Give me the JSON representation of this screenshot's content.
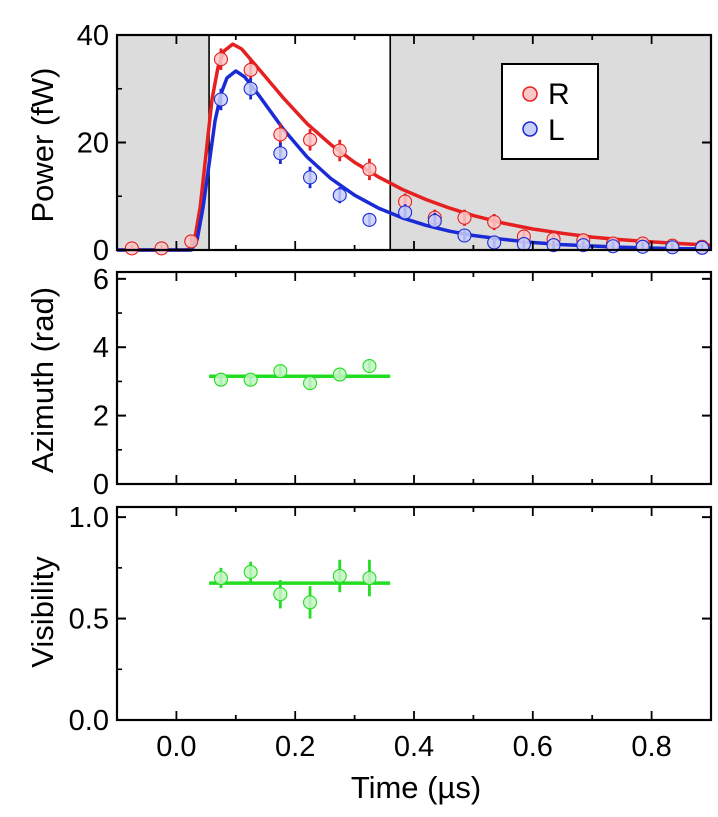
{
  "chart_data": [
    {
      "id": "power",
      "type": "scatter",
      "ylabel": "Power (fW)",
      "xlim": [
        -0.1,
        0.9
      ],
      "ylim": [
        0,
        40
      ],
      "yticks": [
        0,
        20,
        40
      ],
      "shaded_x_ranges": [
        [
          -0.1,
          0.055
        ],
        [
          0.36,
          0.9
        ]
      ],
      "boundary_lines_x": [
        0.055,
        0.36
      ],
      "legend": {
        "placement": "top-right",
        "entries": [
          "R",
          "L"
        ]
      },
      "series": [
        {
          "name": "R",
          "color": "#e62020",
          "marker_fill": "#f9c9c9",
          "points": [
            {
              "x": -0.075,
              "y": 0.3,
              "err": 0.6
            },
            {
              "x": -0.025,
              "y": 0.3,
              "err": 0.6
            },
            {
              "x": 0.025,
              "y": 1.6,
              "err": 1.2
            },
            {
              "x": 0.075,
              "y": 35.5,
              "err": 2.0
            },
            {
              "x": 0.125,
              "y": 33.5,
              "err": 2.0
            },
            {
              "x": 0.175,
              "y": 21.5,
              "err": 2.0
            },
            {
              "x": 0.225,
              "y": 20.5,
              "err": 2.0
            },
            {
              "x": 0.275,
              "y": 18.5,
              "err": 2.0
            },
            {
              "x": 0.325,
              "y": 15.0,
              "err": 2.0
            },
            {
              "x": 0.385,
              "y": 9.0,
              "err": 1.5
            },
            {
              "x": 0.435,
              "y": 6.0,
              "err": 1.5
            },
            {
              "x": 0.485,
              "y": 6.0,
              "err": 1.5
            },
            {
              "x": 0.535,
              "y": 5.2,
              "err": 1.5
            },
            {
              "x": 0.585,
              "y": 2.5,
              "err": 1.2
            },
            {
              "x": 0.635,
              "y": 2.0,
              "err": 1.2
            },
            {
              "x": 0.685,
              "y": 1.8,
              "err": 1.0
            },
            {
              "x": 0.735,
              "y": 1.2,
              "err": 1.0
            },
            {
              "x": 0.785,
              "y": 1.2,
              "err": 1.0
            },
            {
              "x": 0.835,
              "y": 0.8,
              "err": 1.0
            },
            {
              "x": 0.885,
              "y": 0.6,
              "err": 1.0
            }
          ],
          "fit": [
            [
              -0.1,
              0
            ],
            [
              0.02,
              0
            ],
            [
              0.03,
              1.5
            ],
            [
              0.04,
              8
            ],
            [
              0.05,
              18
            ],
            [
              0.06,
              28
            ],
            [
              0.07,
              34
            ],
            [
              0.08,
              37
            ],
            [
              0.095,
              38.3
            ],
            [
              0.11,
              37.4
            ],
            [
              0.14,
              33.5
            ],
            [
              0.18,
              28.3
            ],
            [
              0.22,
              23.5
            ],
            [
              0.26,
              19.6
            ],
            [
              0.3,
              16.3
            ],
            [
              0.34,
              13.6
            ],
            [
              0.38,
              11.3
            ],
            [
              0.42,
              9.4
            ],
            [
              0.46,
              7.8
            ],
            [
              0.5,
              6.4
            ],
            [
              0.55,
              5.0
            ],
            [
              0.6,
              3.9
            ],
            [
              0.65,
              3.1
            ],
            [
              0.7,
              2.4
            ],
            [
              0.75,
              1.9
            ],
            [
              0.8,
              1.5
            ],
            [
              0.85,
              1.2
            ],
            [
              0.9,
              0.9
            ]
          ]
        },
        {
          "name": "L",
          "color": "#1a2bd6",
          "marker_fill": "#c9cff7",
          "points": [
            {
              "x": 0.075,
              "y": 28.0,
              "err": 2.0
            },
            {
              "x": 0.125,
              "y": 30.0,
              "err": 2.0
            },
            {
              "x": 0.175,
              "y": 18.0,
              "err": 2.0
            },
            {
              "x": 0.225,
              "y": 13.5,
              "err": 2.0
            },
            {
              "x": 0.275,
              "y": 10.2,
              "err": 1.5
            },
            {
              "x": 0.325,
              "y": 5.6,
              "err": 1.2
            },
            {
              "x": 0.385,
              "y": 7.0,
              "err": 1.5
            },
            {
              "x": 0.435,
              "y": 5.4,
              "err": 1.5
            },
            {
              "x": 0.485,
              "y": 2.7,
              "err": 1.2
            },
            {
              "x": 0.535,
              "y": 1.4,
              "err": 1.0
            },
            {
              "x": 0.585,
              "y": 1.1,
              "err": 0.8
            },
            {
              "x": 0.635,
              "y": 0.9,
              "err": 0.8
            },
            {
              "x": 0.685,
              "y": 0.9,
              "err": 0.8
            },
            {
              "x": 0.735,
              "y": 0.7,
              "err": 0.8
            },
            {
              "x": 0.785,
              "y": 0.6,
              "err": 0.8
            },
            {
              "x": 0.835,
              "y": 0.5,
              "err": 0.8
            },
            {
              "x": 0.885,
              "y": 0.4,
              "err": 0.8
            }
          ],
          "fit": [
            [
              -0.1,
              0
            ],
            [
              0.025,
              0
            ],
            [
              0.035,
              2
            ],
            [
              0.045,
              8
            ],
            [
              0.055,
              16
            ],
            [
              0.065,
              24
            ],
            [
              0.075,
              29
            ],
            [
              0.085,
              32
            ],
            [
              0.1,
              33.3
            ],
            [
              0.115,
              32.2
            ],
            [
              0.14,
              28.6
            ],
            [
              0.18,
              22.5
            ],
            [
              0.22,
              17.3
            ],
            [
              0.26,
              13.3
            ],
            [
              0.3,
              10.2
            ],
            [
              0.34,
              7.8
            ],
            [
              0.38,
              6.0
            ],
            [
              0.42,
              4.6
            ],
            [
              0.46,
              3.5
            ],
            [
              0.5,
              2.7
            ],
            [
              0.55,
              2.0
            ],
            [
              0.6,
              1.4
            ],
            [
              0.65,
              1.0
            ],
            [
              0.7,
              0.75
            ],
            [
              0.75,
              0.5
            ],
            [
              0.8,
              0.35
            ],
            [
              0.85,
              0.25
            ],
            [
              0.9,
              0.2
            ]
          ]
        }
      ]
    },
    {
      "id": "azimuth",
      "type": "scatter",
      "ylabel": "Azimuth (rad)",
      "xlim": [
        -0.1,
        0.9
      ],
      "ylim": [
        0,
        6.2
      ],
      "yticks": [
        0,
        2,
        4,
        6
      ],
      "series": [
        {
          "color": "#22dd22",
          "marker_fill": "#c6f5c6",
          "points": [
            {
              "x": 0.075,
              "y": 3.05,
              "err": 0.2
            },
            {
              "x": 0.125,
              "y": 3.05,
              "err": 0.2
            },
            {
              "x": 0.175,
              "y": 3.3,
              "err": 0.2
            },
            {
              "x": 0.225,
              "y": 2.95,
              "err": 0.2
            },
            {
              "x": 0.275,
              "y": 3.2,
              "err": 0.2
            },
            {
              "x": 0.325,
              "y": 3.45,
              "err": 0.2
            }
          ],
          "fit": [
            [
              0.055,
              3.15
            ],
            [
              0.36,
              3.15
            ]
          ]
        }
      ]
    },
    {
      "id": "visibility",
      "type": "scatter",
      "ylabel": "Visibility",
      "xlabel": "Time (µs)",
      "xlim": [
        -0.1,
        0.9
      ],
      "xticks": [
        0.0,
        0.2,
        0.4,
        0.6,
        0.8
      ],
      "ylim": [
        0,
        1.05
      ],
      "yticks": [
        0.0,
        0.5,
        1.0
      ],
      "series": [
        {
          "color": "#22dd22",
          "marker_fill": "#c6f5c6",
          "points": [
            {
              "x": 0.075,
              "y": 0.7,
              "err": 0.05
            },
            {
              "x": 0.125,
              "y": 0.73,
              "err": 0.05
            },
            {
              "x": 0.175,
              "y": 0.62,
              "err": 0.07
            },
            {
              "x": 0.225,
              "y": 0.58,
              "err": 0.08
            },
            {
              "x": 0.275,
              "y": 0.71,
              "err": 0.08
            },
            {
              "x": 0.325,
              "y": 0.7,
              "err": 0.09
            }
          ],
          "fit": [
            [
              0.055,
              0.675
            ],
            [
              0.36,
              0.675
            ]
          ]
        }
      ]
    }
  ]
}
